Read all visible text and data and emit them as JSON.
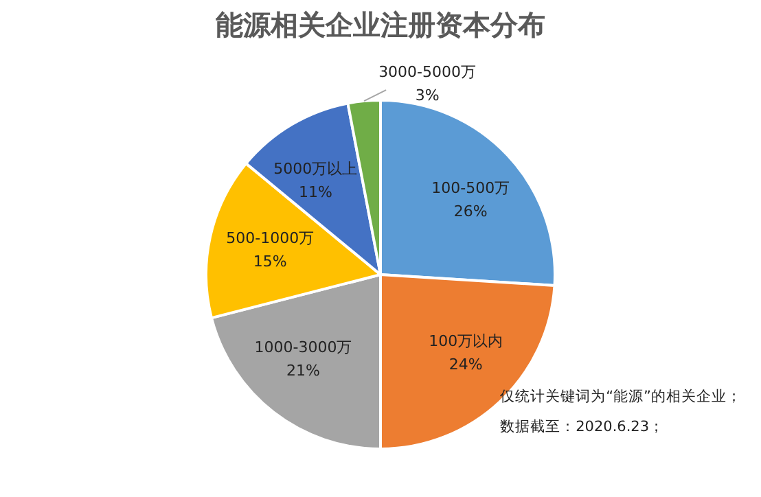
{
  "chart_data": {
    "type": "pie",
    "title": "能源相关企业注册资本分布",
    "categories": [
      "100-500万",
      "100万以内",
      "1000-3000万",
      "500-1000万",
      "5000万以上",
      "3000-5000万"
    ],
    "values": [
      26,
      24,
      21,
      15,
      11,
      3
    ],
    "value_labels": [
      "26%",
      "24%",
      "21%",
      "15%",
      "11%",
      "3%"
    ],
    "colors": [
      "#5b9bd5",
      "#ed7d31",
      "#a5a5a5",
      "#ffc000",
      "#4472c4",
      "#70ad47"
    ],
    "legend": false,
    "annotations": [
      "仅统计关键词为“能源”的相关企业；",
      "数据截至：2020.6.23；"
    ]
  }
}
